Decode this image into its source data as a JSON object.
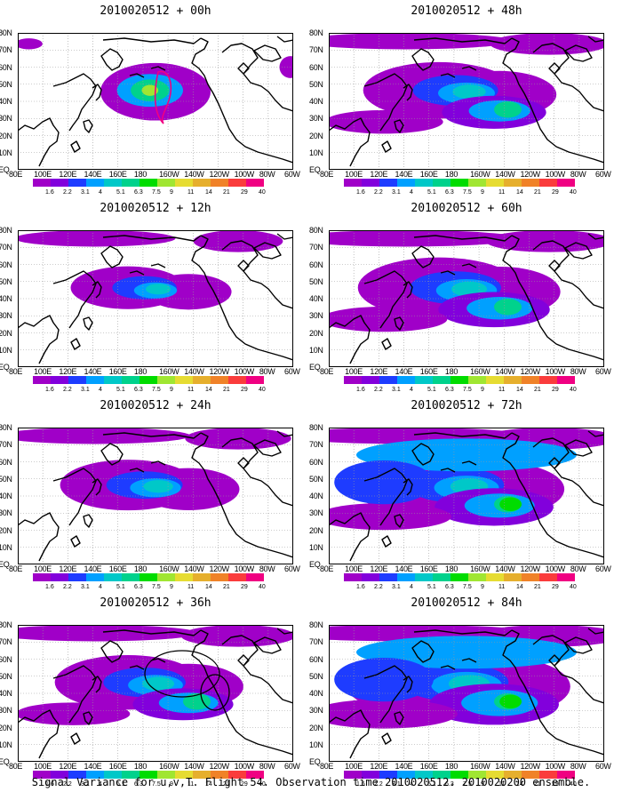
{
  "panels": [
    {
      "title": "2010020512 + 00h",
      "level": 0.05
    },
    {
      "title": "2010020512 + 12h",
      "level": 0.25
    },
    {
      "title": "2010020512 + 24h",
      "level": 0.45
    },
    {
      "title": "2010020512 + 36h",
      "level": 0.55
    },
    {
      "title": "2010020512 + 48h",
      "level": 0.6
    },
    {
      "title": "2010020512 + 60h",
      "level": 0.7
    },
    {
      "title": "2010020512 + 72h",
      "level": 0.8
    },
    {
      "title": "2010020512 + 84h",
      "level": 0.95
    }
  ],
  "lat_labels": [
    "80N",
    "70N",
    "60N",
    "50N",
    "40N",
    "30N",
    "20N",
    "10N",
    "EQ"
  ],
  "lon_labels": [
    "80E",
    "100E",
    "120E",
    "140E",
    "160E",
    "180",
    "160W",
    "140W",
    "120W",
    "100W",
    "80W",
    "60W"
  ],
  "colorbar": {
    "labels": [
      "1.6",
      "2.2",
      "3.1",
      "4",
      "5.1",
      "6.3",
      "7.5",
      "9",
      "11",
      "14",
      "21",
      "29",
      "40"
    ],
    "colors": [
      "#a000c8",
      "#8200dc",
      "#1e3cff",
      "#00a0ff",
      "#00c8c8",
      "#00d28c",
      "#00dc00",
      "#a0e632",
      "#e6dc32",
      "#e6af2d",
      "#f08228",
      "#fa3c3c",
      "#f00082"
    ]
  },
  "footer": "Signal Variance for u,v,T. Flight 54. Observation time 2010020512. 2010020200 ensemble."
}
